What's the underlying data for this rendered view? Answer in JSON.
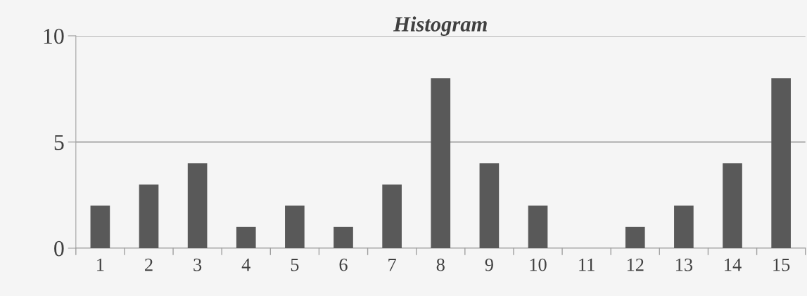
{
  "chart_data": {
    "type": "bar",
    "title": "Histogram",
    "categories": [
      "1",
      "2",
      "3",
      "4",
      "5",
      "6",
      "7",
      "8",
      "9",
      "10",
      "11",
      "12",
      "13",
      "14",
      "15"
    ],
    "values": [
      2,
      3,
      4,
      1,
      2,
      1,
      3,
      8,
      4,
      2,
      0,
      1,
      2,
      4,
      8
    ],
    "color": "#595959",
    "ylim": [
      0,
      10
    ],
    "yticks": [
      0,
      5,
      10
    ],
    "grid": "y",
    "legend": false
  }
}
